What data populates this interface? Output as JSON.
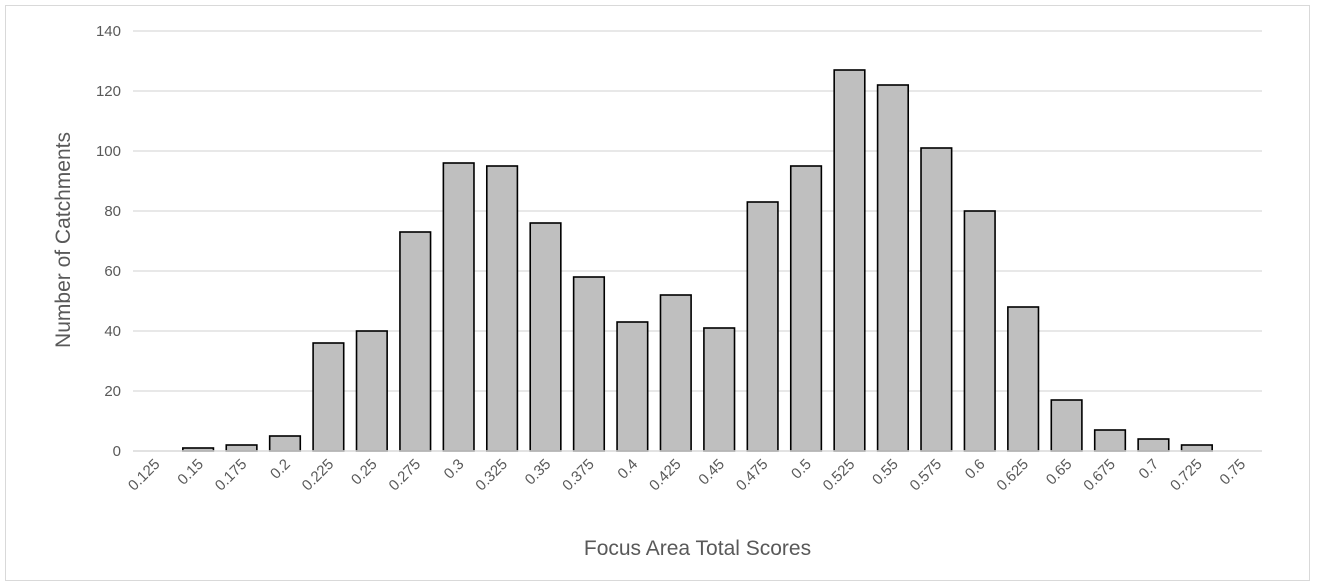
{
  "chart_data": {
    "type": "bar",
    "title": "",
    "xlabel": "Focus Area Total Scores",
    "ylabel": "Number of Catchments",
    "categories": [
      "0.125",
      "0.15",
      "0.175",
      "0.2",
      "0.225",
      "0.25",
      "0.275",
      "0.3",
      "0.325",
      "0.35",
      "0.375",
      "0.4",
      "0.425",
      "0.45",
      "0.475",
      "0.5",
      "0.525",
      "0.55",
      "0.575",
      "0.6",
      "0.625",
      "0.65",
      "0.675",
      "0.7",
      "0.725",
      "0.75"
    ],
    "values": [
      0,
      1,
      2,
      5,
      36,
      40,
      73,
      96,
      95,
      76,
      58,
      43,
      52,
      41,
      83,
      95,
      127,
      122,
      101,
      80,
      48,
      17,
      7,
      4,
      2,
      0
    ],
    "ylim": [
      0,
      140
    ],
    "yticks": [
      0,
      20,
      40,
      60,
      80,
      100,
      120,
      140
    ],
    "grid": true,
    "legend": "none",
    "colors": {
      "bar_fill": "#bfbfbf",
      "bar_stroke": "#000000",
      "grid": "#d9d9d9",
      "text": "#595959"
    }
  }
}
